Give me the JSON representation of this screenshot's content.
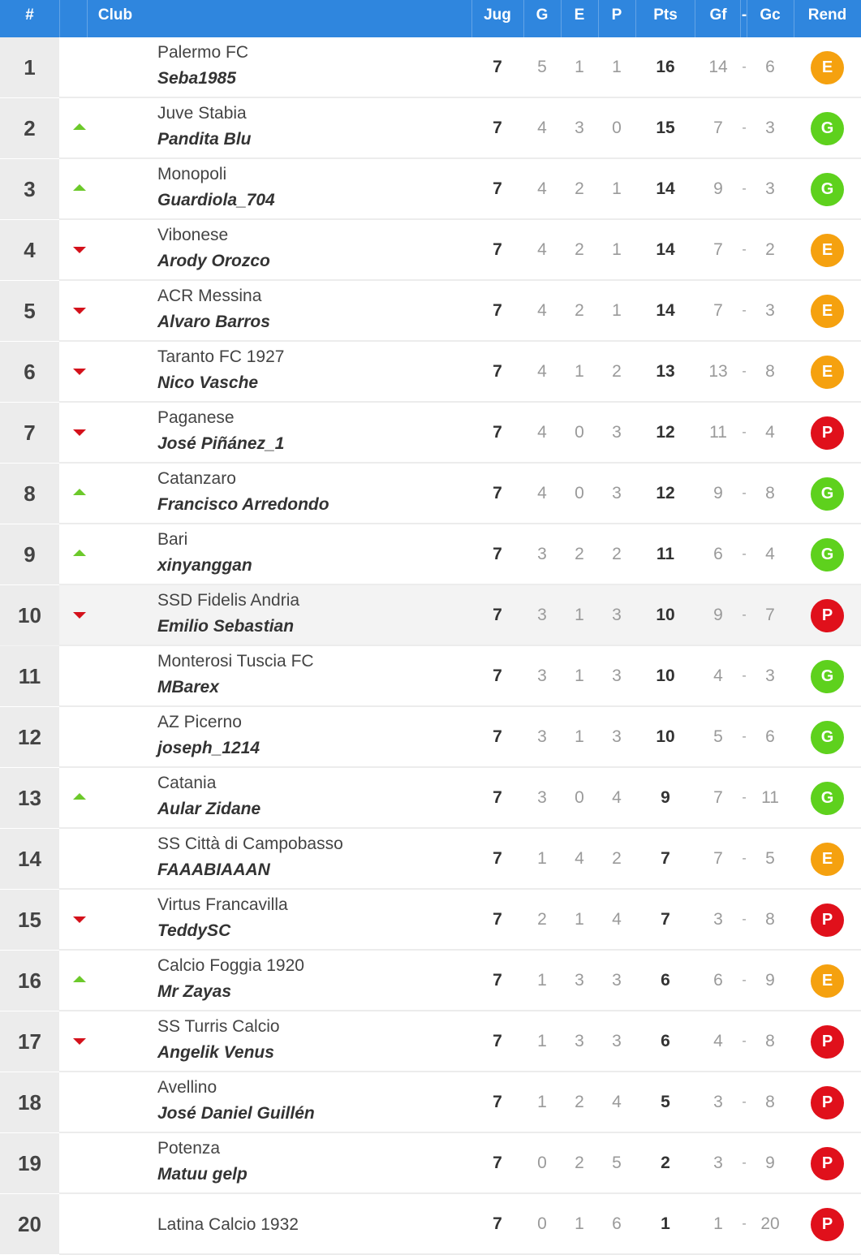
{
  "header": {
    "rank": "#",
    "club": "Club",
    "jug": "Jug",
    "g": "G",
    "e": "E",
    "p": "P",
    "pts": "Pts",
    "gf": "Gf",
    "dash": "-",
    "gc": "Gc",
    "rend": "Rend"
  },
  "colors": {
    "header_bg": "#2f86de",
    "up": "#6cc92a",
    "down": "#d4111b",
    "E": "#f5a10f",
    "G": "#5ed11d",
    "P": "#e0101b"
  },
  "rows": [
    {
      "rank": "1",
      "trend": "none",
      "club": "Palermo FC",
      "manager": "Seba1985",
      "jug": "7",
      "g": "5",
      "e": "1",
      "p": "1",
      "pts": "16",
      "gf": "14",
      "dash": "-",
      "gc": "6",
      "rend": "E"
    },
    {
      "rank": "2",
      "trend": "up",
      "club": "Juve Stabia",
      "manager": "Pandita Blu",
      "jug": "7",
      "g": "4",
      "e": "3",
      "p": "0",
      "pts": "15",
      "gf": "7",
      "dash": "-",
      "gc": "3",
      "rend": "G"
    },
    {
      "rank": "3",
      "trend": "up",
      "club": "Monopoli",
      "manager": "Guardiola_704",
      "jug": "7",
      "g": "4",
      "e": "2",
      "p": "1",
      "pts": "14",
      "gf": "9",
      "dash": "-",
      "gc": "3",
      "rend": "G"
    },
    {
      "rank": "4",
      "trend": "down",
      "club": "Vibonese",
      "manager": "Arody Orozco",
      "jug": "7",
      "g": "4",
      "e": "2",
      "p": "1",
      "pts": "14",
      "gf": "7",
      "dash": "-",
      "gc": "2",
      "rend": "E"
    },
    {
      "rank": "5",
      "trend": "down",
      "club": "ACR Messina",
      "manager": "Alvaro Barros",
      "jug": "7",
      "g": "4",
      "e": "2",
      "p": "1",
      "pts": "14",
      "gf": "7",
      "dash": "-",
      "gc": "3",
      "rend": "E"
    },
    {
      "rank": "6",
      "trend": "down",
      "club": "Taranto FC 1927",
      "manager": "Nico Vasche",
      "jug": "7",
      "g": "4",
      "e": "1",
      "p": "2",
      "pts": "13",
      "gf": "13",
      "dash": "-",
      "gc": "8",
      "rend": "E"
    },
    {
      "rank": "7",
      "trend": "down",
      "club": "Paganese",
      "manager": "José Piñánez_1",
      "jug": "7",
      "g": "4",
      "e": "0",
      "p": "3",
      "pts": "12",
      "gf": "11",
      "dash": "-",
      "gc": "4",
      "rend": "P"
    },
    {
      "rank": "8",
      "trend": "up",
      "club": "Catanzaro",
      "manager": "Francisco Arredondo",
      "jug": "7",
      "g": "4",
      "e": "0",
      "p": "3",
      "pts": "12",
      "gf": "9",
      "dash": "-",
      "gc": "8",
      "rend": "G"
    },
    {
      "rank": "9",
      "trend": "up",
      "club": "Bari",
      "manager": "xinyanggan",
      "jug": "7",
      "g": "3",
      "e": "2",
      "p": "2",
      "pts": "11",
      "gf": "6",
      "dash": "-",
      "gc": "4",
      "rend": "G"
    },
    {
      "rank": "10",
      "trend": "down",
      "club": "SSD Fidelis Andria",
      "manager": "Emilio Sebastian",
      "jug": "7",
      "g": "3",
      "e": "1",
      "p": "3",
      "pts": "10",
      "gf": "9",
      "dash": "-",
      "gc": "7",
      "rend": "P"
    },
    {
      "rank": "11",
      "trend": "none",
      "club": "Monterosi Tuscia FC",
      "manager": "MBarex",
      "jug": "7",
      "g": "3",
      "e": "1",
      "p": "3",
      "pts": "10",
      "gf": "4",
      "dash": "-",
      "gc": "3",
      "rend": "G"
    },
    {
      "rank": "12",
      "trend": "none",
      "club": "AZ Picerno",
      "manager": "joseph_1214",
      "jug": "7",
      "g": "3",
      "e": "1",
      "p": "3",
      "pts": "10",
      "gf": "5",
      "dash": "-",
      "gc": "6",
      "rend": "G"
    },
    {
      "rank": "13",
      "trend": "up",
      "club": "Catania",
      "manager": "Aular Zidane",
      "jug": "7",
      "g": "3",
      "e": "0",
      "p": "4",
      "pts": "9",
      "gf": "7",
      "dash": "-",
      "gc": "11",
      "rend": "G"
    },
    {
      "rank": "14",
      "trend": "none",
      "club": "SS Città di Campobasso",
      "manager": "FAAABIAAAN",
      "jug": "7",
      "g": "1",
      "e": "4",
      "p": "2",
      "pts": "7",
      "gf": "7",
      "dash": "-",
      "gc": "5",
      "rend": "E"
    },
    {
      "rank": "15",
      "trend": "down",
      "club": "Virtus Francavilla",
      "manager": "TeddySC",
      "jug": "7",
      "g": "2",
      "e": "1",
      "p": "4",
      "pts": "7",
      "gf": "3",
      "dash": "-",
      "gc": "8",
      "rend": "P"
    },
    {
      "rank": "16",
      "trend": "up",
      "club": "Calcio Foggia 1920",
      "manager": "Mr Zayas",
      "jug": "7",
      "g": "1",
      "e": "3",
      "p": "3",
      "pts": "6",
      "gf": "6",
      "dash": "-",
      "gc": "9",
      "rend": "E"
    },
    {
      "rank": "17",
      "trend": "down",
      "club": "SS Turris Calcio",
      "manager": "Angelik Venus",
      "jug": "7",
      "g": "1",
      "e": "3",
      "p": "3",
      "pts": "6",
      "gf": "4",
      "dash": "-",
      "gc": "8",
      "rend": "P"
    },
    {
      "rank": "18",
      "trend": "none",
      "club": "Avellino",
      "manager": "José Daniel Guillén",
      "jug": "7",
      "g": "1",
      "e": "2",
      "p": "4",
      "pts": "5",
      "gf": "3",
      "dash": "-",
      "gc": "8",
      "rend": "P"
    },
    {
      "rank": "19",
      "trend": "none",
      "club": "Potenza",
      "manager": "Matuu gelp",
      "jug": "7",
      "g": "0",
      "e": "2",
      "p": "5",
      "pts": "2",
      "gf": "3",
      "dash": "-",
      "gc": "9",
      "rend": "P"
    },
    {
      "rank": "20",
      "trend": "none",
      "club": "Latina Calcio 1932",
      "manager": "",
      "jug": "7",
      "g": "0",
      "e": "1",
      "p": "6",
      "pts": "1",
      "gf": "1",
      "dash": "-",
      "gc": "20",
      "rend": "P"
    }
  ]
}
